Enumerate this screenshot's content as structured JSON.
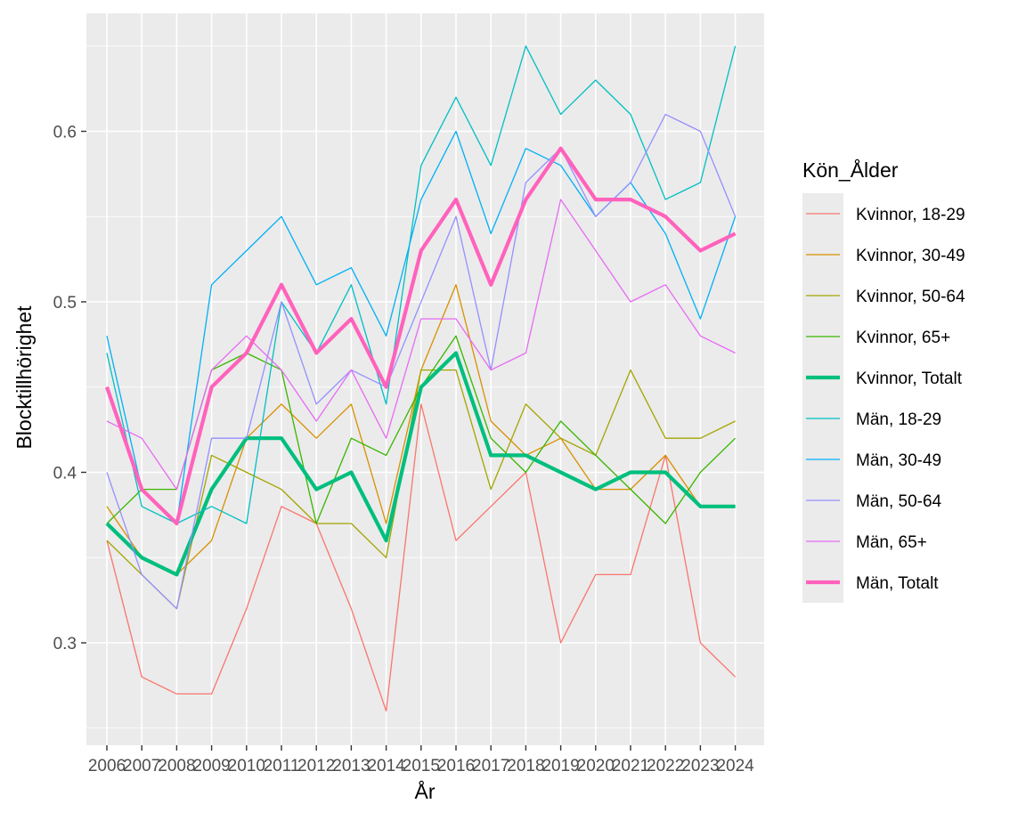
{
  "chart_data": {
    "type": "line",
    "xlabel": "År",
    "ylabel": "Blocktillhörighet",
    "legend_title": "Kön_Ålder",
    "legend_position": "right",
    "grid": true,
    "ylim": [
      0.24,
      0.665
    ],
    "y_ticks": [
      0.3,
      0.4,
      0.5,
      0.6
    ],
    "y_tick_labels": [
      "0.3",
      "0.4",
      "0.5",
      "0.6"
    ],
    "x": [
      "2006",
      "2007",
      "2008",
      "2009",
      "2010",
      "2011",
      "2012",
      "2013",
      "2014",
      "2015",
      "2016",
      "2017",
      "2018",
      "2019",
      "2020",
      "2021",
      "2022",
      "2023",
      "2024"
    ],
    "series": [
      {
        "name": "Kvinnor, 18-29",
        "color": "#F8766D",
        "thick": false,
        "values": [
          0.36,
          0.28,
          0.27,
          0.27,
          0.32,
          0.38,
          0.37,
          0.32,
          0.26,
          0.44,
          0.36,
          0.38,
          0.4,
          0.3,
          0.34,
          0.34,
          0.41,
          0.3,
          0.28
        ]
      },
      {
        "name": "Kvinnor, 30-49",
        "color": "#D89000",
        "thick": false,
        "values": [
          0.38,
          0.35,
          0.34,
          0.36,
          0.42,
          0.44,
          0.42,
          0.44,
          0.37,
          0.46,
          0.51,
          0.43,
          0.41,
          0.42,
          0.39,
          0.39,
          0.41,
          0.38,
          0.38
        ]
      },
      {
        "name": "Kvinnor, 50-64",
        "color": "#A3A500",
        "thick": false,
        "values": [
          0.36,
          0.34,
          0.32,
          0.41,
          0.4,
          0.39,
          0.37,
          0.37,
          0.35,
          0.46,
          0.46,
          0.39,
          0.44,
          0.42,
          0.41,
          0.46,
          0.42,
          0.42,
          0.43
        ]
      },
      {
        "name": "Kvinnor, 65+",
        "color": "#39B600",
        "thick": false,
        "values": [
          0.37,
          0.39,
          0.39,
          0.46,
          0.47,
          0.46,
          0.37,
          0.42,
          0.41,
          0.45,
          0.48,
          0.42,
          0.4,
          0.43,
          0.41,
          0.39,
          0.37,
          0.4,
          0.42
        ]
      },
      {
        "name": "Kvinnor, Totalt",
        "color": "#00BF7D",
        "thick": true,
        "values": [
          0.37,
          0.35,
          0.34,
          0.39,
          0.42,
          0.42,
          0.39,
          0.4,
          0.36,
          0.45,
          0.47,
          0.41,
          0.41,
          0.4,
          0.39,
          0.4,
          0.4,
          0.38,
          0.38
        ]
      },
      {
        "name": "Män, 18-29",
        "color": "#00BFC4",
        "thick": false,
        "values": [
          0.47,
          0.38,
          0.37,
          0.38,
          0.37,
          0.5,
          0.47,
          0.51,
          0.44,
          0.58,
          0.62,
          0.58,
          0.65,
          0.61,
          0.63,
          0.61,
          0.56,
          0.57,
          0.65
        ]
      },
      {
        "name": "Män, 30-49",
        "color": "#00B0F6",
        "thick": false,
        "values": [
          0.48,
          0.39,
          0.37,
          0.51,
          0.53,
          0.55,
          0.51,
          0.52,
          0.48,
          0.56,
          0.6,
          0.54,
          0.59,
          0.58,
          0.55,
          0.57,
          0.54,
          0.49,
          0.55
        ]
      },
      {
        "name": "Män, 50-64",
        "color": "#9590FF",
        "thick": false,
        "values": [
          0.4,
          0.34,
          0.32,
          0.42,
          0.42,
          0.5,
          0.44,
          0.46,
          0.45,
          0.5,
          0.55,
          0.46,
          0.57,
          0.59,
          0.55,
          0.57,
          0.61,
          0.6,
          0.55
        ]
      },
      {
        "name": "Män, 65+",
        "color": "#E76BF3",
        "thick": false,
        "values": [
          0.43,
          0.42,
          0.39,
          0.46,
          0.48,
          0.46,
          0.43,
          0.46,
          0.42,
          0.49,
          0.49,
          0.46,
          0.47,
          0.56,
          0.53,
          0.5,
          0.51,
          0.48,
          0.47
        ]
      },
      {
        "name": "Män, Totalt",
        "color": "#FF62BC",
        "thick": true,
        "values": [
          0.45,
          0.39,
          0.37,
          0.45,
          0.47,
          0.51,
          0.47,
          0.49,
          0.45,
          0.53,
          0.56,
          0.51,
          0.56,
          0.59,
          0.56,
          0.56,
          0.55,
          0.53,
          0.54
        ]
      }
    ]
  }
}
